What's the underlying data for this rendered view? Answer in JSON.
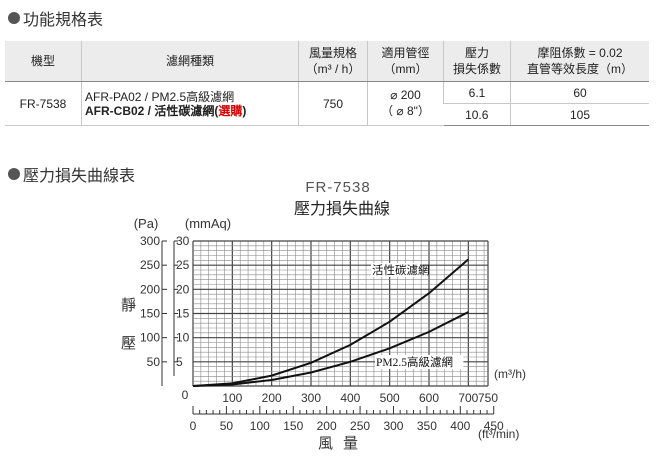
{
  "section1": {
    "title": "功能規格表"
  },
  "section2": {
    "title": "壓力損失曲線表"
  },
  "table": {
    "headers": {
      "model": "機型",
      "filter": "濾網種類",
      "airflow": [
        "風量規格",
        "（m³ / h）"
      ],
      "duct": [
        "適用管徑",
        "（mm）"
      ],
      "pressure_loss": [
        "壓力",
        "損失係數"
      ],
      "length": [
        "摩阻係數 = 0.02",
        "直管等效長度（m）"
      ]
    },
    "model": "FR-7538",
    "filter_line1": "AFR-PA02 / PM2.5高級濾網",
    "filter_line2_prefix": "AFR-CB02 / 活性碳濾網(",
    "filter_line2_red": "選購",
    "filter_line2_suffix": ")",
    "airflow_value": "750",
    "duct_value_1": "⌀ 200",
    "duct_value_2": "（ ⌀ 8\"）",
    "rows": [
      {
        "loss": "6.1",
        "length": "60"
      },
      {
        "loss": "10.6",
        "length": "105"
      }
    ]
  },
  "chart_data": {
    "type": "line",
    "title": "FR-7538",
    "subtitle": "壓力損失曲線",
    "ylabel": "靜壓",
    "yunit_left": "(Pa)",
    "yunit_right": "(mmAq)",
    "xlabel": "風量",
    "xunit_top": "(m³/h)",
    "xunit_bottom": "(ft³/min)",
    "xlim": [
      0,
      750
    ],
    "ylim_pa": [
      0,
      300
    ],
    "ylim_mmaq": [
      0,
      30
    ],
    "x_ticks_m3h": [
      "100",
      "200",
      "300",
      "400",
      "500",
      "600",
      "700",
      "750"
    ],
    "x_ticks_cfm": [
      "0",
      "50",
      "100",
      "150",
      "200",
      "250",
      "300",
      "350",
      "400",
      "450"
    ],
    "y_ticks_pa": [
      "0",
      "50",
      "100",
      "150",
      "200",
      "250",
      "300"
    ],
    "y_ticks_mmaq": [
      "5",
      "10",
      "15",
      "20",
      "25",
      "30"
    ],
    "grid": true,
    "series": [
      {
        "name": "活性碳濾網",
        "x": [
          0,
          100,
          200,
          300,
          400,
          500,
          600,
          700
        ],
        "y": [
          0,
          5.5,
          21.5,
          48,
          85,
          133,
          192,
          262
        ],
        "color": "#111111"
      },
      {
        "name": "PM2.5高級濾網",
        "x": [
          0,
          100,
          200,
          300,
          400,
          500,
          600,
          700
        ],
        "y": [
          0,
          3.2,
          12.5,
          28,
          50,
          78,
          112,
          153
        ],
        "color": "#111111"
      }
    ]
  }
}
